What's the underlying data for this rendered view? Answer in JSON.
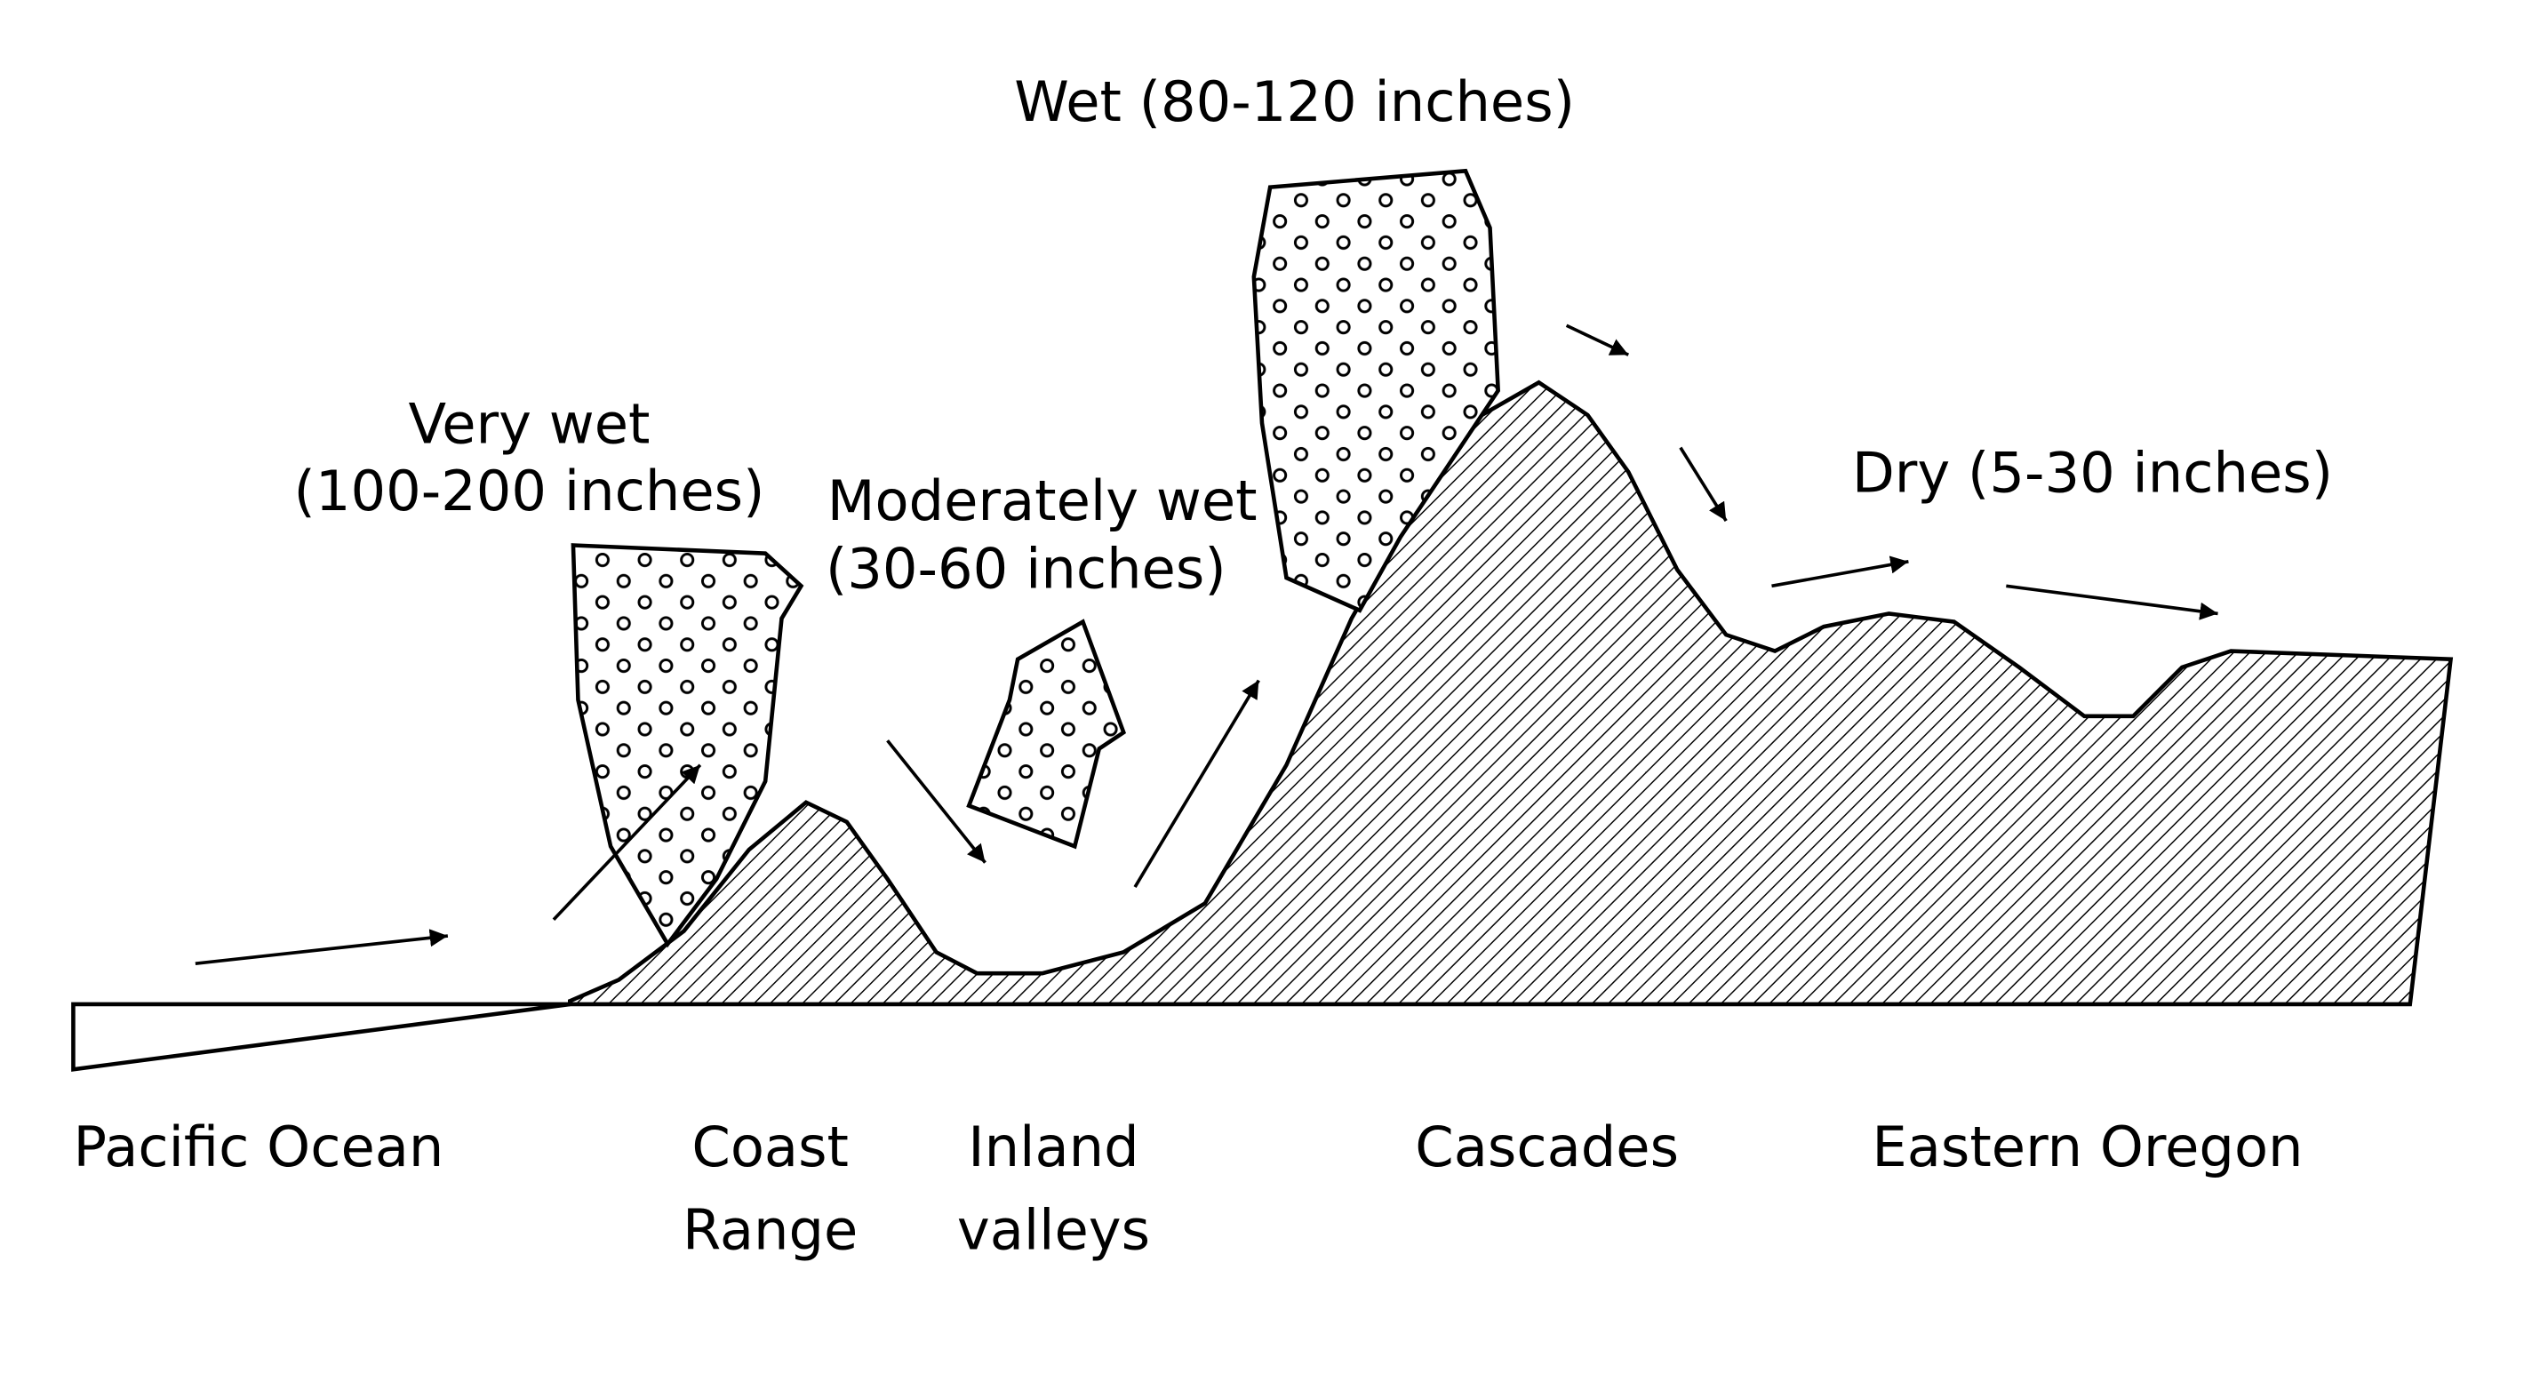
{
  "labels": {
    "wet": "Wet (80-120 inches)",
    "very_wet": [
      "Very wet",
      "(100-200 inches)"
    ],
    "moderately_wet": [
      "Moderately wet",
      "(30-60 inches)"
    ],
    "dry": "Dry (5-30 inches)"
  },
  "regions": {
    "pacific_ocean": "Pacific Ocean",
    "coast_range": [
      "Coast",
      "Range"
    ],
    "inland_valleys": [
      "Inland",
      "valleys"
    ],
    "cascades": "Cascades",
    "eastern_oregon": "Eastern Oregon"
  }
}
